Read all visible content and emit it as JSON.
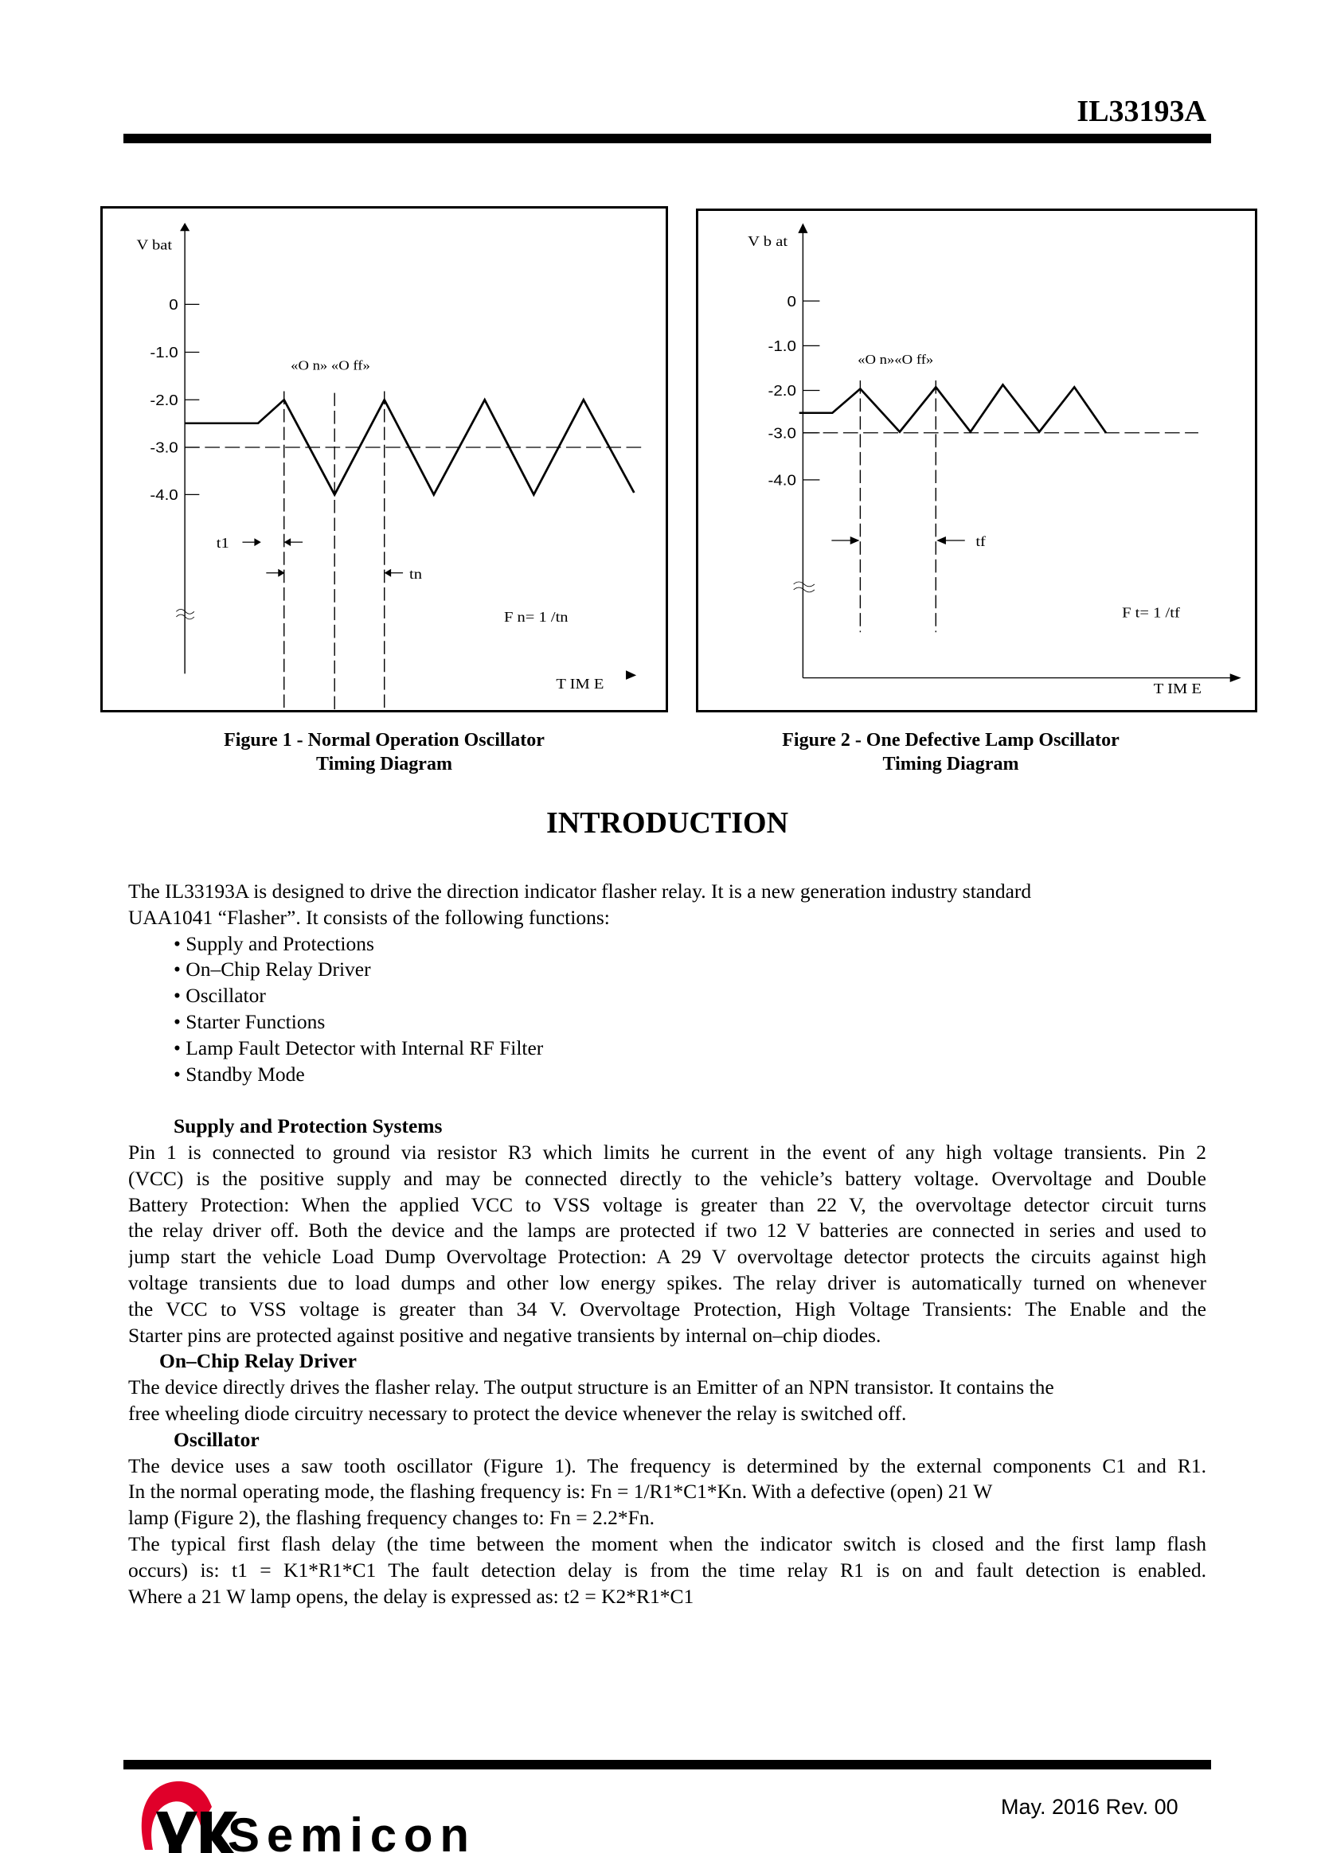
{
  "header": {
    "title": "IL33193A"
  },
  "figure1": {
    "y_label": "V bat",
    "ticks": [
      "0",
      "-1.0",
      "-2.0",
      "-3.0",
      "-4.0"
    ],
    "on_off": "«O n» «O ff»",
    "t1": "t1",
    "tn": "tn",
    "formula": "F n= 1 /tn",
    "x_label": "T IM E",
    "caption_line1": "Figure 1 - Normal Operation Oscillator",
    "caption_line2": "Timing Diagram"
  },
  "figure2": {
    "y_label": "V b at",
    "ticks": [
      "0",
      "-1.0",
      "-2.0",
      "-3.0",
      "-4.0"
    ],
    "on_off": "«O n»«O ff»",
    "tf": "tf",
    "formula": "F t= 1 /tf",
    "x_label": "T IM E",
    "caption_line1": "Figure 2 - One Defective Lamp Oscillator",
    "caption_line2": "Timing Diagram"
  },
  "intro": {
    "title": "INTRODUCTION",
    "p1": [
      "The IL33193A is designed to drive the direction indicator flasher relay. It is a new generation industry standard",
      "UAA1041 “Flasher”. It consists of the following functions:"
    ],
    "bullets": [
      "• Supply and Protections",
      "• On–Chip Relay Driver",
      "• Oscillator",
      "• Starter Functions",
      "• Lamp Fault Detector with Internal RF Filter",
      "• Standby Mode"
    ],
    "supply_heading": "Supply and Protection Systems",
    "supply_lines": [
      "Pin 1 is connected to ground via resistor R3 which limits he current in the event of any high voltage transients. Pin 2",
      "(VCC) is the positive supply and may be connected directly to the vehicle’s battery voltage. Overvoltage and Double",
      "Battery Protection: When the applied VCC to VSS voltage is greater than 22 V, the overvoltage detector circuit turns",
      "the relay driver off. Both the device and the lamps are protected if two 12 V batteries are connected in series and used to",
      "jump start the vehicle Load Dump Overvoltage Protection: A 29 V overvoltage detector protects the circuits against high",
      "voltage transients due to load dumps and other low energy spikes. The relay driver is automatically turned on whenever",
      "the VCC to VSS voltage is greater than 34 V. Overvoltage Protection, High Voltage Transients: The Enable and the",
      "Starter pins are protected against positive and negative transients by internal on–chip diodes."
    ],
    "relay_heading": "On–Chip Relay Driver",
    "relay_lines": [
      "The device directly drives the flasher relay. The output structure is an Emitter of an NPN transistor. It contains the",
      "free wheeling diode circuitry necessary to protect the device whenever the relay is switched off."
    ],
    "osc_heading": "Oscillator",
    "osc_lines": [
      "The device uses a saw tooth oscillator (Figure 1). The frequency is determined by the external components C1 and R1.",
      "In the normal operating mode, the flashing frequency is: Fn = 1/R1*C1*Kn. With a defective (open) 21 W",
      "lamp (Figure 2), the flashing frequency changes to: Fn = 2.2*Fn.",
      "The typical first flash delay (the time between the moment when the indicator switch is closed and the first lamp flash",
      "occurs) is: t1 = K1*R1*C1 The fault detection delay is from the time relay R1 is on and fault detection is enabled.",
      "Where a 21 W lamp opens, the delay is expressed as: t2 = K2*R1*C1"
    ]
  },
  "footer": {
    "logo_text": "IK Semicon",
    "date": "May. 2016 Rev. 00",
    "logo_red": "#e0002a"
  }
}
